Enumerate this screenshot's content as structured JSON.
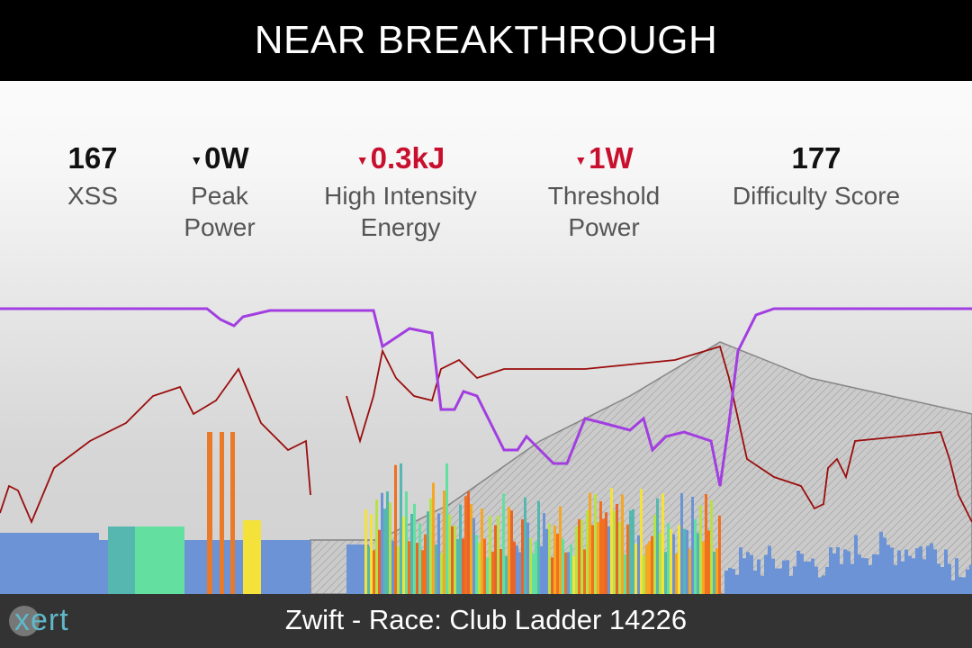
{
  "header": {
    "title": "NEAR BREAKTHROUGH"
  },
  "metrics": [
    {
      "value": "167",
      "label": "XSS"
    },
    {
      "value": "0W",
      "label": "Peak Power"
    },
    {
      "value": "0.3kJ",
      "label": "High Intensity Energy"
    },
    {
      "value": "1W",
      "label": "Threshold Power"
    },
    {
      "value": "177",
      "label": "Difficulty Score"
    }
  ],
  "footer": {
    "brand": "xert",
    "title": "Zwift - Race: Club Ladder 14226"
  }
}
